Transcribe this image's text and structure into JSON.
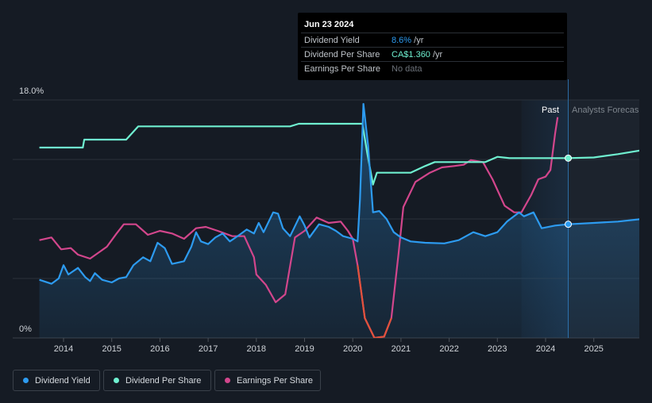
{
  "tooltip": {
    "date": "Jun 23 2024",
    "rows": [
      {
        "label": "Dividend Yield",
        "value": "8.6%",
        "suffix": " /yr"
      },
      {
        "label": "Dividend Per Share",
        "value": "CA$1.360",
        "suffix": " /yr"
      },
      {
        "label": "Earnings Per Share",
        "value": "No data",
        "suffix": ""
      }
    ]
  },
  "regions": {
    "past": "Past",
    "forecast": "Analysts Forecas"
  },
  "legend": [
    {
      "label": "Dividend Yield",
      "color": "#2d9bf0"
    },
    {
      "label": "Dividend Per Share",
      "color": "#6ff0d0"
    },
    {
      "label": "Earnings Per Share",
      "color": "#d2468c"
    }
  ],
  "colors": {
    "background": "#151b24",
    "yield": "#2d9bf0",
    "dps": "#6ff0d0",
    "eps": "#d2468c",
    "eps_negative": "#e2523b"
  },
  "chart_data": {
    "type": "line",
    "title": "",
    "xlabel": "",
    "ylabel": "",
    "ylim": [
      0,
      18
    ],
    "y_tick_labels": [
      "18.0%",
      "0%"
    ],
    "x_ticks": [
      "2014",
      "2015",
      "2016",
      "2017",
      "2018",
      "2019",
      "2020",
      "2021",
      "2022",
      "2023",
      "2024",
      "2025"
    ],
    "xlim": [
      2013.0,
      2026.0
    ],
    "past_end": 2024.47,
    "forecast_shade_start": 2023.5,
    "grid": true,
    "series": [
      {
        "name": "Dividend Yield",
        "unit": "%",
        "points": [
          [
            2013.5,
            4.4
          ],
          [
            2013.75,
            4.1
          ],
          [
            2013.9,
            4.5
          ],
          [
            2014.0,
            5.5
          ],
          [
            2014.1,
            4.8
          ],
          [
            2014.3,
            5.3
          ],
          [
            2014.45,
            4.6
          ],
          [
            2014.55,
            4.3
          ],
          [
            2014.65,
            4.9
          ],
          [
            2014.8,
            4.4
          ],
          [
            2015.0,
            4.2
          ],
          [
            2015.15,
            4.5
          ],
          [
            2015.3,
            4.6
          ],
          [
            2015.45,
            5.5
          ],
          [
            2015.65,
            6.1
          ],
          [
            2015.8,
            5.8
          ],
          [
            2015.95,
            7.2
          ],
          [
            2016.1,
            6.8
          ],
          [
            2016.25,
            5.6
          ],
          [
            2016.5,
            5.8
          ],
          [
            2016.65,
            6.9
          ],
          [
            2016.75,
            8.0
          ],
          [
            2016.85,
            7.3
          ],
          [
            2017.0,
            7.1
          ],
          [
            2017.15,
            7.6
          ],
          [
            2017.3,
            7.9
          ],
          [
            2017.45,
            7.3
          ],
          [
            2017.65,
            7.8
          ],
          [
            2017.8,
            8.2
          ],
          [
            2017.95,
            7.9
          ],
          [
            2018.05,
            8.7
          ],
          [
            2018.15,
            8.0
          ],
          [
            2018.35,
            9.5
          ],
          [
            2018.45,
            9.4
          ],
          [
            2018.55,
            8.3
          ],
          [
            2018.7,
            7.7
          ],
          [
            2018.9,
            9.2
          ],
          [
            2019.0,
            8.5
          ],
          [
            2019.1,
            7.6
          ],
          [
            2019.3,
            8.6
          ],
          [
            2019.5,
            8.4
          ],
          [
            2019.65,
            8.1
          ],
          [
            2019.8,
            7.7
          ],
          [
            2020.0,
            7.5
          ],
          [
            2020.1,
            7.3
          ],
          [
            2020.15,
            10.5
          ],
          [
            2020.22,
            17.7
          ],
          [
            2020.32,
            14.5
          ],
          [
            2020.42,
            9.5
          ],
          [
            2020.55,
            9.6
          ],
          [
            2020.7,
            9.0
          ],
          [
            2020.85,
            8.0
          ],
          [
            2021.0,
            7.6
          ],
          [
            2021.2,
            7.3
          ],
          [
            2021.5,
            7.2
          ],
          [
            2021.9,
            7.15
          ],
          [
            2022.2,
            7.4
          ],
          [
            2022.5,
            8.0
          ],
          [
            2022.75,
            7.7
          ],
          [
            2023.0,
            8.0
          ],
          [
            2023.2,
            8.8
          ],
          [
            2023.45,
            9.5
          ],
          [
            2023.55,
            9.2
          ],
          [
            2023.75,
            9.5
          ],
          [
            2023.92,
            8.3
          ],
          [
            2024.2,
            8.5
          ],
          [
            2024.47,
            8.6
          ],
          [
            2025.0,
            8.7
          ],
          [
            2025.5,
            8.8
          ],
          [
            2026.0,
            9.0
          ]
        ]
      },
      {
        "name": "Dividend Per Share",
        "unit": "CA$",
        "points": [
          [
            2013.5,
            14.4
          ],
          [
            2014.4,
            14.4
          ],
          [
            2014.43,
            15.0
          ],
          [
            2015.3,
            15.0
          ],
          [
            2015.55,
            16.0
          ],
          [
            2018.7,
            16.0
          ],
          [
            2018.88,
            16.2
          ],
          [
            2020.2,
            16.2
          ],
          [
            2020.3,
            14.0
          ],
          [
            2020.42,
            11.6
          ],
          [
            2020.5,
            12.5
          ],
          [
            2021.2,
            12.5
          ],
          [
            2021.5,
            13.0
          ],
          [
            2021.7,
            13.3
          ],
          [
            2022.75,
            13.3
          ],
          [
            2023.0,
            13.7
          ],
          [
            2023.25,
            13.6
          ],
          [
            2024.47,
            13.6
          ],
          [
            2025.0,
            13.65
          ],
          [
            2025.5,
            13.9
          ],
          [
            2026.0,
            14.2
          ]
        ]
      },
      {
        "name": "Earnings Per Share",
        "unit": "",
        "points": [
          [
            2013.5,
            7.4
          ],
          [
            2013.75,
            7.6
          ],
          [
            2013.95,
            6.7
          ],
          [
            2014.15,
            6.8
          ],
          [
            2014.3,
            6.3
          ],
          [
            2014.55,
            6.0
          ],
          [
            2014.9,
            6.9
          ],
          [
            2015.1,
            7.9
          ],
          [
            2015.25,
            8.6
          ],
          [
            2015.5,
            8.6
          ],
          [
            2015.75,
            7.8
          ],
          [
            2016.0,
            8.1
          ],
          [
            2016.25,
            7.9
          ],
          [
            2016.5,
            7.5
          ],
          [
            2016.75,
            8.3
          ],
          [
            2016.95,
            8.4
          ],
          [
            2017.2,
            8.1
          ],
          [
            2017.5,
            7.7
          ],
          [
            2017.75,
            7.7
          ],
          [
            2017.95,
            6.1
          ],
          [
            2018.0,
            4.8
          ],
          [
            2018.2,
            4.0
          ],
          [
            2018.4,
            2.7
          ],
          [
            2018.6,
            3.3
          ],
          [
            2018.8,
            7.6
          ],
          [
            2019.0,
            8.1
          ],
          [
            2019.25,
            9.1
          ],
          [
            2019.5,
            8.7
          ],
          [
            2019.75,
            8.8
          ],
          [
            2019.9,
            8.1
          ],
          [
            2020.0,
            7.5
          ],
          [
            2020.1,
            5.5
          ],
          [
            2020.25,
            1.5
          ],
          [
            2020.45,
            0.0
          ],
          [
            2020.65,
            0.1
          ],
          [
            2020.8,
            1.5
          ],
          [
            2020.95,
            6.4
          ],
          [
            2021.05,
            9.9
          ],
          [
            2021.3,
            11.8
          ],
          [
            2021.6,
            12.5
          ],
          [
            2021.85,
            12.9
          ],
          [
            2022.1,
            13.0
          ],
          [
            2022.3,
            13.1
          ],
          [
            2022.45,
            13.45
          ],
          [
            2022.7,
            13.3
          ],
          [
            2022.9,
            12.0
          ],
          [
            2023.15,
            10.0
          ],
          [
            2023.35,
            9.5
          ],
          [
            2023.5,
            9.5
          ],
          [
            2023.7,
            10.8
          ],
          [
            2023.85,
            12.0
          ],
          [
            2024.0,
            12.2
          ],
          [
            2024.1,
            12.7
          ],
          [
            2024.2,
            15.5
          ],
          [
            2024.25,
            16.7
          ]
        ]
      }
    ]
  }
}
